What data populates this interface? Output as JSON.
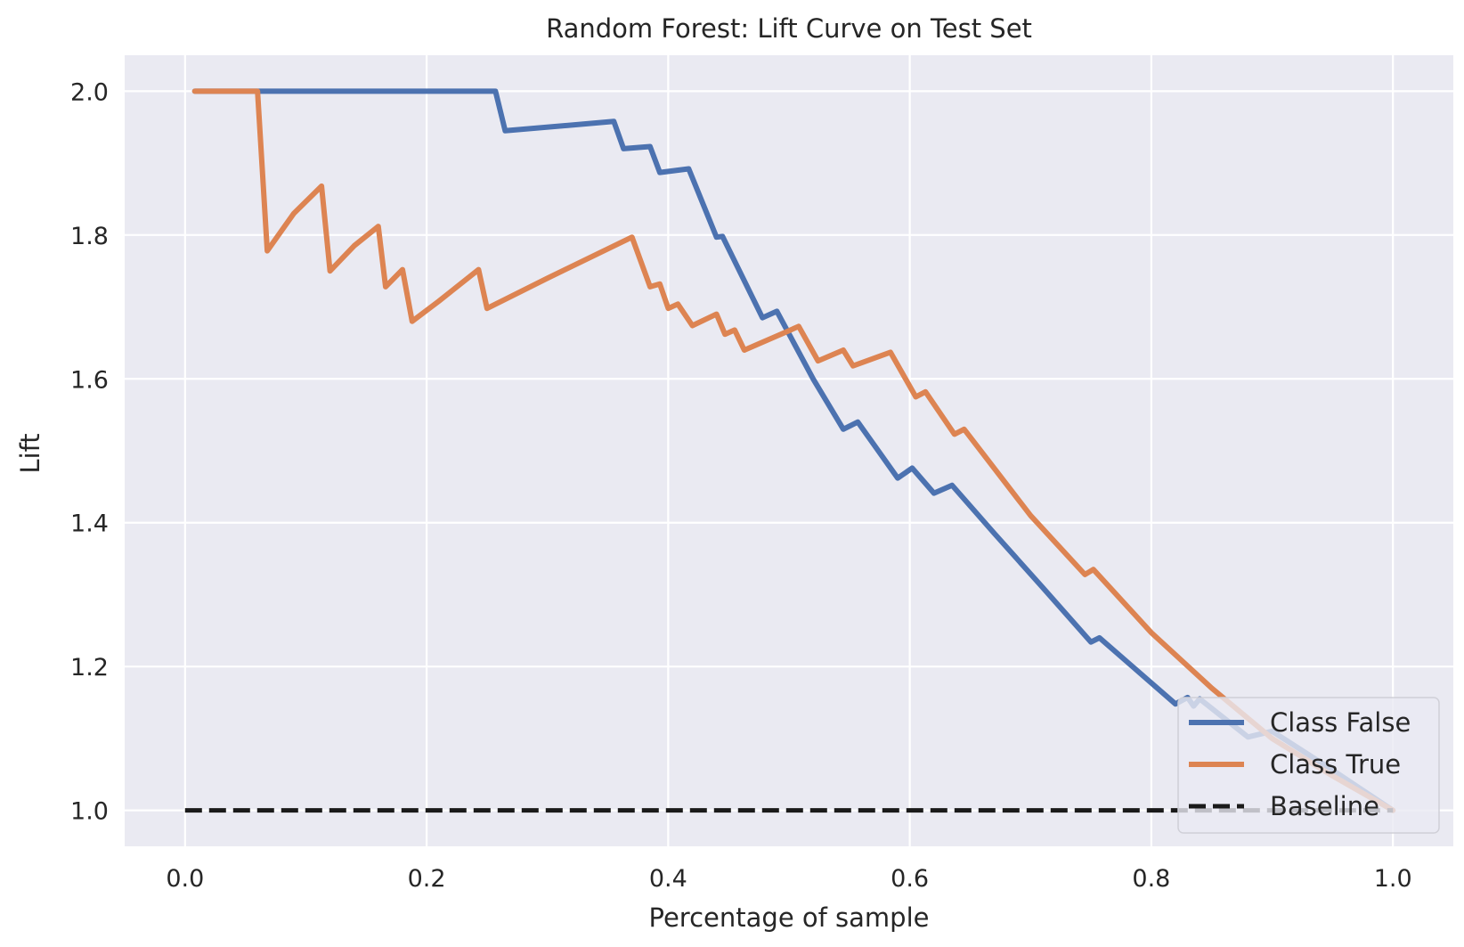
{
  "chart_data": {
    "type": "line",
    "title": "Random Forest: Lift Curve on Test Set",
    "xlabel": "Percentage of sample",
    "ylabel": "Lift",
    "xlim": [
      -0.05,
      1.05
    ],
    "ylim": [
      0.95,
      2.05
    ],
    "xticks": [
      0.0,
      0.2,
      0.4,
      0.6,
      0.8,
      1.0
    ],
    "xtick_labels": [
      "0.0",
      "0.2",
      "0.4",
      "0.6",
      "0.8",
      "1.0"
    ],
    "yticks": [
      1.0,
      1.2,
      1.4,
      1.6,
      1.8,
      2.0
    ],
    "ytick_labels": [
      "1.0",
      "1.2",
      "1.4",
      "1.6",
      "1.8",
      "2.0"
    ],
    "grid": true,
    "legend_position": "lower-right",
    "series": [
      {
        "name": "Class False",
        "color": "#4c72b0",
        "style": "solid",
        "x": [
          0.008,
          0.2,
          0.257,
          0.265,
          0.355,
          0.363,
          0.385,
          0.393,
          0.417,
          0.44,
          0.445,
          0.478,
          0.49,
          0.52,
          0.545,
          0.557,
          0.59,
          0.602,
          0.62,
          0.635,
          0.67,
          0.71,
          0.75,
          0.757,
          0.82,
          0.83,
          0.835,
          0.84,
          0.88,
          0.9,
          0.95,
          1.0
        ],
        "y": [
          2.0,
          2.0,
          2.0,
          1.945,
          1.958,
          1.92,
          1.923,
          1.887,
          1.892,
          1.797,
          1.798,
          1.685,
          1.694,
          1.6,
          1.53,
          1.54,
          1.462,
          1.476,
          1.441,
          1.452,
          1.385,
          1.31,
          1.234,
          1.24,
          1.148,
          1.157,
          1.145,
          1.155,
          1.102,
          1.11,
          1.056,
          1.0
        ]
      },
      {
        "name": "Class True",
        "color": "#dd8452",
        "style": "solid",
        "x": [
          0.008,
          0.06,
          0.068,
          0.09,
          0.113,
          0.12,
          0.14,
          0.16,
          0.166,
          0.18,
          0.188,
          0.21,
          0.243,
          0.25,
          0.3,
          0.37,
          0.385,
          0.393,
          0.4,
          0.408,
          0.42,
          0.44,
          0.447,
          0.455,
          0.463,
          0.5,
          0.508,
          0.524,
          0.545,
          0.553,
          0.584,
          0.605,
          0.613,
          0.637,
          0.645,
          0.7,
          0.745,
          0.752,
          0.8,
          0.85,
          0.9,
          0.95,
          1.0
        ],
        "y": [
          2.0,
          2.0,
          1.778,
          1.83,
          1.868,
          1.75,
          1.785,
          1.812,
          1.728,
          1.752,
          1.68,
          1.708,
          1.752,
          1.698,
          1.74,
          1.797,
          1.728,
          1.732,
          1.698,
          1.704,
          1.674,
          1.69,
          1.662,
          1.668,
          1.64,
          1.667,
          1.673,
          1.625,
          1.64,
          1.618,
          1.637,
          1.575,
          1.582,
          1.523,
          1.53,
          1.41,
          1.328,
          1.335,
          1.247,
          1.17,
          1.1,
          1.048,
          1.0
        ]
      },
      {
        "name": "Baseline",
        "color": "#1a1a1a",
        "style": "dashed",
        "x": [
          0.0,
          1.0
        ],
        "y": [
          1.0,
          1.0
        ]
      }
    ]
  }
}
